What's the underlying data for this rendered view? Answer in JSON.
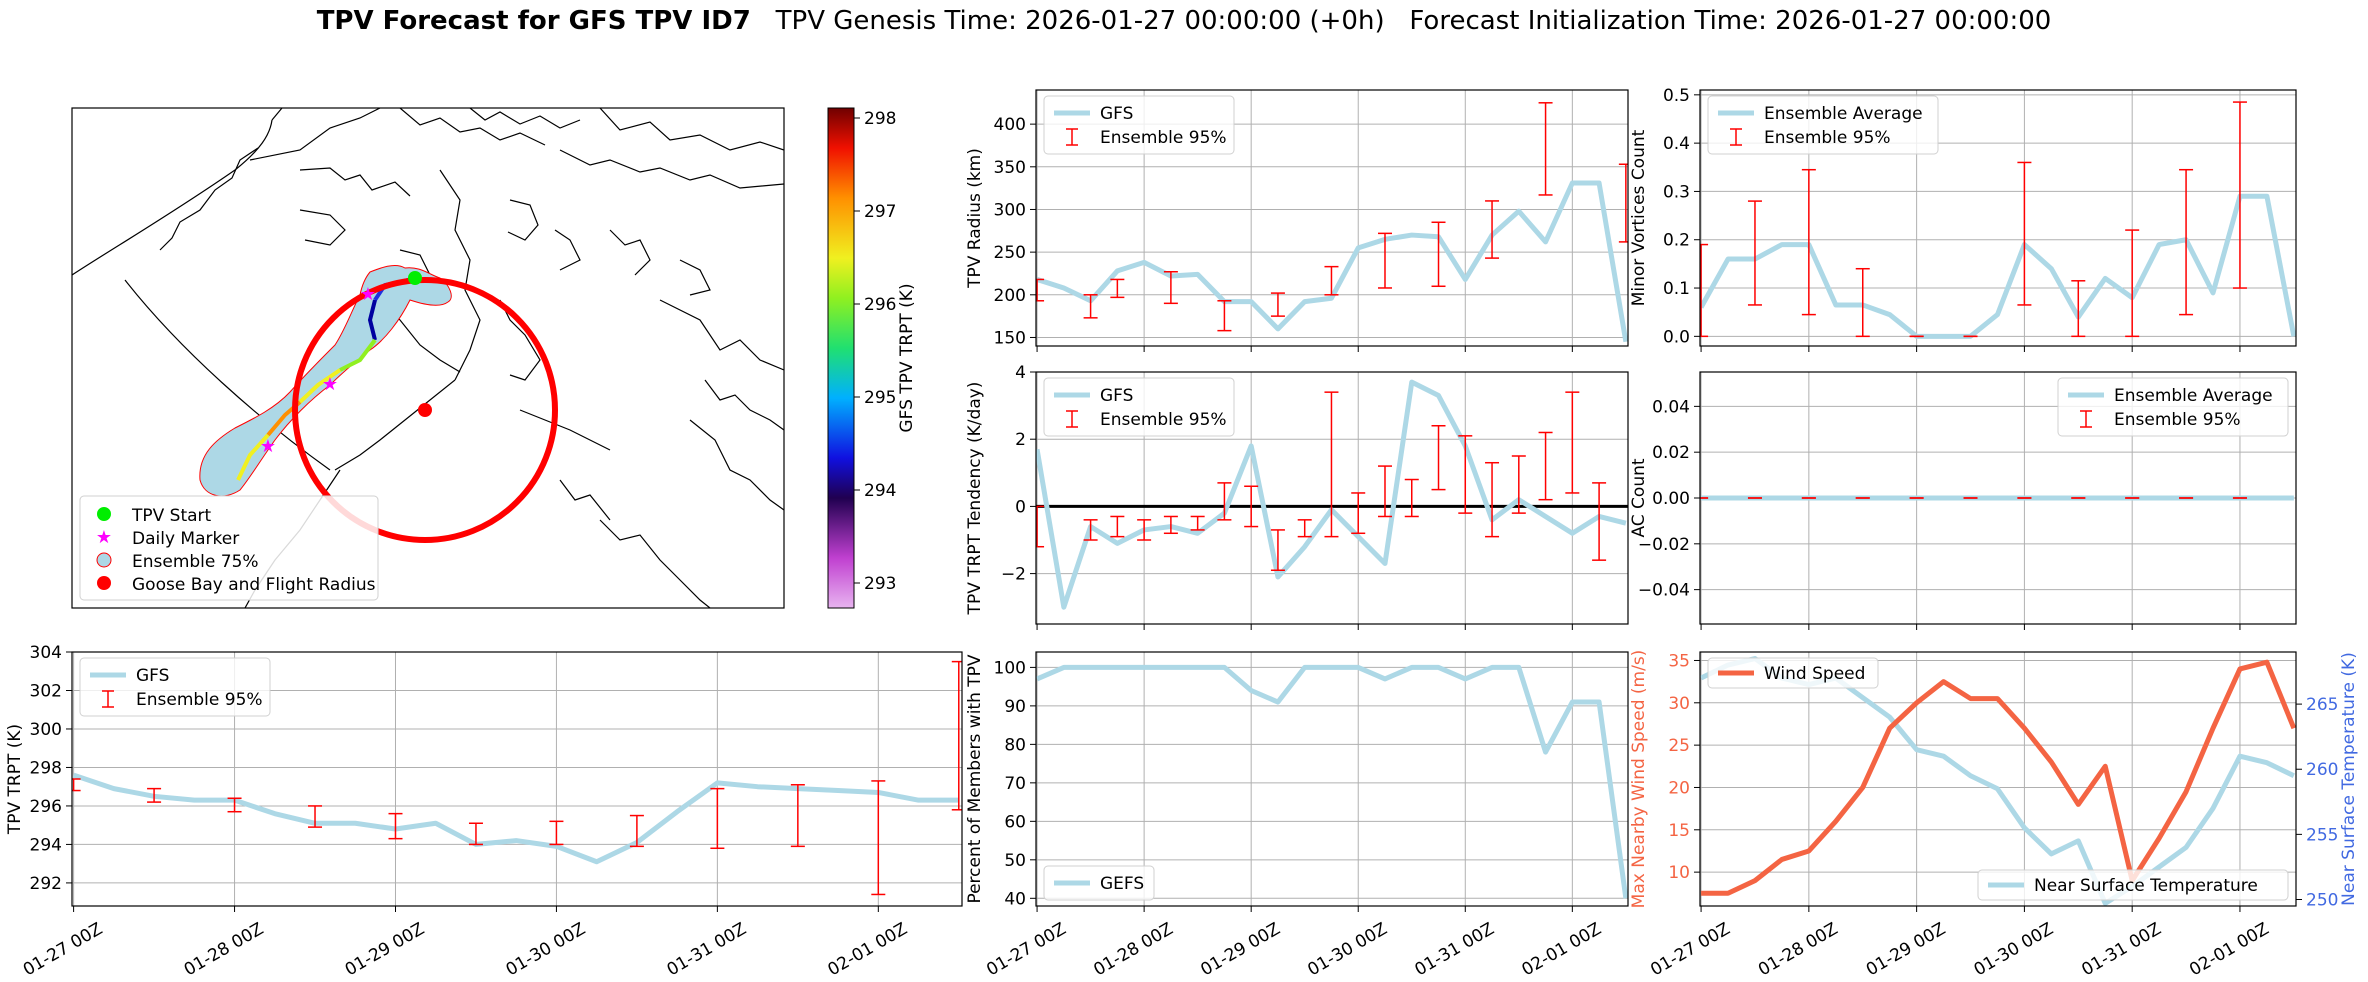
{
  "title": {
    "bold": "TPV Forecast for GFS TPV ID7",
    "genesis": "TPV Genesis Time: 2026-01-27 00:00:00 (+0h)",
    "init": "Forecast Initialization Time: 2026-01-27 00:00:00"
  },
  "colors": {
    "line_blue": "#add8e6",
    "error_red": "#ff0000",
    "wind_red": "#f46443",
    "temp_blue": "#4169e1",
    "grid": "#b0b0b0",
    "ensemble_fill": "#add8e6"
  },
  "x_ticks": [
    "01-27 00Z",
    "01-28 00Z",
    "01-29 00Z",
    "01-30 00Z",
    "01-31 00Z",
    "02-01 00Z"
  ],
  "map": {
    "legend": [
      "TPV Start",
      "Daily Marker",
      "Ensemble 75%",
      "Goose Bay and Flight Radius"
    ],
    "colorbar_label": "GFS TPV TRPT (K)",
    "colorbar_ticks": [
      "293",
      "294",
      "295",
      "296",
      "297",
      "298"
    ]
  },
  "chart_data": [
    {
      "id": "radius",
      "type": "line",
      "ylabel": "TPV Radius (km)",
      "ylim": [
        140,
        440
      ],
      "yticks": [
        150,
        200,
        250,
        300,
        350,
        400
      ],
      "legend": [
        "GFS",
        "Ensemble 95%"
      ],
      "legend_pos": "upper-left",
      "x": [
        0,
        0.25,
        0.5,
        0.75,
        1,
        1.25,
        1.5,
        1.75,
        2,
        2.25,
        2.5,
        2.75,
        3,
        3.25,
        3.5,
        3.75,
        4,
        4.25,
        4.5,
        4.75,
        5,
        5.25,
        5.5
      ],
      "values": [
        218,
        208,
        193,
        228,
        238,
        222,
        224,
        192,
        192,
        160,
        192,
        196,
        255,
        265,
        270,
        268,
        218,
        270,
        298,
        262,
        331,
        331,
        145
      ],
      "errors": [
        [
          0,
          193,
          218
        ],
        [
          0.5,
          173,
          200
        ],
        [
          0.75,
          197,
          218
        ],
        [
          1.25,
          190,
          227
        ],
        [
          1.75,
          158,
          193
        ],
        [
          2.25,
          175,
          202
        ],
        [
          2.75,
          200,
          233
        ],
        [
          3.25,
          208,
          272
        ],
        [
          3.75,
          210,
          285
        ],
        [
          4.25,
          243,
          310
        ],
        [
          4.75,
          317,
          425
        ],
        [
          5.5,
          262,
          353
        ]
      ]
    },
    {
      "id": "minor",
      "type": "line",
      "ylabel": "Minor Vortices Count",
      "ylim": [
        -0.02,
        0.51
      ],
      "yticks": [
        0.0,
        0.1,
        0.2,
        0.3,
        0.4,
        0.5
      ],
      "legend": [
        "Ensemble Average",
        "Ensemble 95%"
      ],
      "legend_pos": "upper-left",
      "x": [
        0,
        0.25,
        0.5,
        0.75,
        1,
        1.25,
        1.5,
        1.75,
        2,
        2.25,
        2.5,
        2.75,
        3,
        3.25,
        3.5,
        3.75,
        4,
        4.25,
        4.5,
        4.75,
        5,
        5.25,
        5.5
      ],
      "values": [
        0.06,
        0.16,
        0.16,
        0.19,
        0.19,
        0.065,
        0.065,
        0.045,
        0.0,
        0.0,
        0.0,
        0.045,
        0.19,
        0.14,
        0.04,
        0.12,
        0.08,
        0.19,
        0.2,
        0.09,
        0.29,
        0.29,
        0.0
      ],
      "errors": [
        [
          0,
          0.0,
          0.19
        ],
        [
          0.5,
          0.065,
          0.28
        ],
        [
          1,
          0.045,
          0.345
        ],
        [
          1.5,
          0.0,
          0.14
        ],
        [
          2,
          0.0,
          0.0
        ],
        [
          2.5,
          0.0,
          0.0
        ],
        [
          3,
          0.065,
          0.36
        ],
        [
          3.5,
          0.0,
          0.115
        ],
        [
          4,
          0.0,
          0.22
        ],
        [
          4.5,
          0.045,
          0.345
        ],
        [
          5,
          0.1,
          0.485
        ]
      ]
    },
    {
      "id": "tendency",
      "type": "line",
      "ylabel": "TPV TRPT Tendency (K/day)",
      "ylim": [
        -3.5,
        4
      ],
      "yticks": [
        -2,
        0,
        2,
        4
      ],
      "legend": [
        "GFS",
        "Ensemble 95%"
      ],
      "legend_pos": "upper-left",
      "x": [
        0,
        0.25,
        0.5,
        0.75,
        1,
        1.25,
        1.5,
        1.75,
        2,
        2.25,
        2.5,
        2.75,
        3,
        3.25,
        3.5,
        3.75,
        4,
        4.25,
        4.5,
        4.75,
        5,
        5.25,
        5.5
      ],
      "values": [
        1.7,
        -3.0,
        -0.6,
        -1.1,
        -0.7,
        -0.6,
        -0.8,
        -0.2,
        1.8,
        -2.1,
        -1.2,
        -0.1,
        -0.9,
        -1.7,
        3.7,
        3.3,
        1.8,
        -0.4,
        0.2,
        -0.3,
        -0.8,
        -0.3,
        -0.5
      ],
      "errors": [
        [
          0,
          -1.2,
          0.0
        ],
        [
          0.5,
          -1.0,
          -0.4
        ],
        [
          0.75,
          -0.9,
          -0.3
        ],
        [
          1,
          -1.0,
          -0.4
        ],
        [
          1.25,
          -0.8,
          -0.3
        ],
        [
          1.5,
          -0.7,
          -0.3
        ],
        [
          1.75,
          -0.4,
          0.7
        ],
        [
          2,
          -0.6,
          0.6
        ],
        [
          2.25,
          -1.9,
          -0.7
        ],
        [
          2.5,
          -0.9,
          -0.4
        ],
        [
          2.75,
          -0.9,
          3.4
        ],
        [
          3,
          -0.8,
          0.4
        ],
        [
          3.25,
          -0.3,
          1.2
        ],
        [
          3.5,
          -0.3,
          0.8
        ],
        [
          3.75,
          0.5,
          2.4
        ],
        [
          4,
          -0.2,
          2.1
        ],
        [
          4.25,
          -0.9,
          1.3
        ],
        [
          4.5,
          -0.2,
          1.5
        ],
        [
          4.75,
          0.2,
          2.2
        ],
        [
          5,
          0.4,
          3.4
        ],
        [
          5.25,
          -1.6,
          0.7
        ]
      ]
    },
    {
      "id": "ac",
      "type": "line",
      "ylabel": "AC Count",
      "ylim": [
        -0.055,
        0.055
      ],
      "yticks": [
        -0.04,
        -0.02,
        0.0,
        0.02,
        0.04
      ],
      "legend": [
        "Ensemble Average",
        "Ensemble 95%"
      ],
      "legend_pos": "upper-right",
      "x": [
        0,
        0.25,
        0.5,
        0.75,
        1,
        1.25,
        1.5,
        1.75,
        2,
        2.25,
        2.5,
        2.75,
        3,
        3.25,
        3.5,
        3.75,
        4,
        4.25,
        4.5,
        4.75,
        5,
        5.25,
        5.5
      ],
      "values": [
        0,
        0,
        0,
        0,
        0,
        0,
        0,
        0,
        0,
        0,
        0,
        0,
        0,
        0,
        0,
        0,
        0,
        0,
        0,
        0,
        0,
        0,
        0
      ],
      "errors": [
        [
          0,
          0,
          0
        ],
        [
          0.5,
          0,
          0
        ],
        [
          1,
          0,
          0
        ],
        [
          1.5,
          0,
          0
        ],
        [
          2,
          0,
          0
        ],
        [
          2.5,
          0,
          0
        ],
        [
          3,
          0,
          0
        ],
        [
          3.5,
          0,
          0
        ],
        [
          4,
          0,
          0
        ],
        [
          4.5,
          0,
          0
        ],
        [
          5,
          0,
          0
        ]
      ]
    },
    {
      "id": "trpt",
      "type": "line",
      "ylabel": "TPV TRPT (K)",
      "ylim": [
        290.8,
        304
      ],
      "yticks": [
        292,
        294,
        296,
        298,
        300,
        302,
        304
      ],
      "legend": [
        "GFS",
        "Ensemble 95%"
      ],
      "legend_pos": "upper-left",
      "x": [
        0,
        0.25,
        0.5,
        0.75,
        1,
        1.25,
        1.5,
        1.75,
        2,
        2.25,
        2.5,
        2.75,
        3,
        3.25,
        3.5,
        3.75,
        4,
        4.25,
        4.5,
        4.75,
        5,
        5.25,
        5.5
      ],
      "values": [
        297.6,
        296.9,
        296.5,
        296.3,
        296.3,
        295.6,
        295.1,
        295.1,
        294.8,
        295.1,
        294.0,
        294.2,
        293.9,
        293.1,
        294.1,
        295.7,
        297.2,
        297.0,
        296.9,
        296.8,
        296.7,
        296.3,
        296.3
      ],
      "errors": [
        [
          0,
          296.8,
          297.4
        ],
        [
          0.5,
          296.2,
          296.9
        ],
        [
          1,
          295.7,
          296.4
        ],
        [
          1.5,
          294.9,
          296.0
        ],
        [
          2,
          294.3,
          295.6
        ],
        [
          2.5,
          294.0,
          295.1
        ],
        [
          3,
          294.0,
          295.2
        ],
        [
          3.5,
          293.9,
          295.5
        ],
        [
          4,
          293.8,
          296.9
        ],
        [
          4.5,
          293.9,
          297.1
        ],
        [
          5,
          291.4,
          297.3
        ],
        [
          5.5,
          295.8,
          303.5
        ]
      ]
    },
    {
      "id": "percent",
      "type": "line",
      "ylabel": "Percent of Members with TPV",
      "ylim": [
        38,
        104
      ],
      "yticks": [
        40,
        50,
        60,
        70,
        80,
        90,
        100
      ],
      "legend": [
        "GEFS"
      ],
      "legend_pos": "lower-left",
      "x": [
        0,
        0.25,
        0.5,
        0.75,
        1,
        1.25,
        1.5,
        1.75,
        2,
        2.25,
        2.5,
        2.75,
        3,
        3.25,
        3.5,
        3.75,
        4,
        4.25,
        4.5,
        4.75,
        5,
        5.25,
        5.5
      ],
      "values": [
        97,
        100,
        100,
        100,
        100,
        100,
        100,
        100,
        94,
        91,
        100,
        100,
        100,
        97,
        100,
        100,
        97,
        100,
        100,
        78,
        91,
        91,
        40
      ]
    },
    {
      "id": "wind",
      "type": "line",
      "ylabel": "Max Nearby Wind Speed (m/s)",
      "ylim": [
        6,
        36
      ],
      "yticks": [
        10,
        15,
        20,
        25,
        30,
        35
      ],
      "y2label": "Near Surface Temperature (K)",
      "y2lim": [
        249.5,
        269
      ],
      "y2ticks": [
        250,
        255,
        260,
        265
      ],
      "legend": [
        "Wind Speed"
      ],
      "legend2": [
        "Near Surface Temperature"
      ],
      "x": [
        0,
        0.25,
        0.5,
        0.75,
        1,
        1.25,
        1.5,
        1.75,
        2,
        2.25,
        2.5,
        2.75,
        3,
        3.25,
        3.5,
        3.75,
        4,
        4.25,
        4.5,
        4.75,
        5,
        5.25,
        5.5
      ],
      "series": [
        {
          "name": "Wind Speed",
          "values": [
            7.5,
            7.5,
            9,
            11.5,
            12.5,
            16,
            20,
            27,
            30,
            32.5,
            30.5,
            30.5,
            27,
            23,
            18,
            22.5,
            9,
            14,
            19.5,
            27,
            34,
            34.8,
            27
          ]
        },
        {
          "name": "Near Surface Temperature",
          "values": [
            267,
            268,
            268.5,
            267,
            266.5,
            267,
            265.5,
            264,
            261.5,
            261,
            259.5,
            258.5,
            255.5,
            253.5,
            254.5,
            249.7,
            251,
            252.5,
            254,
            257,
            261,
            260.5,
            259.5
          ]
        }
      ]
    }
  ]
}
